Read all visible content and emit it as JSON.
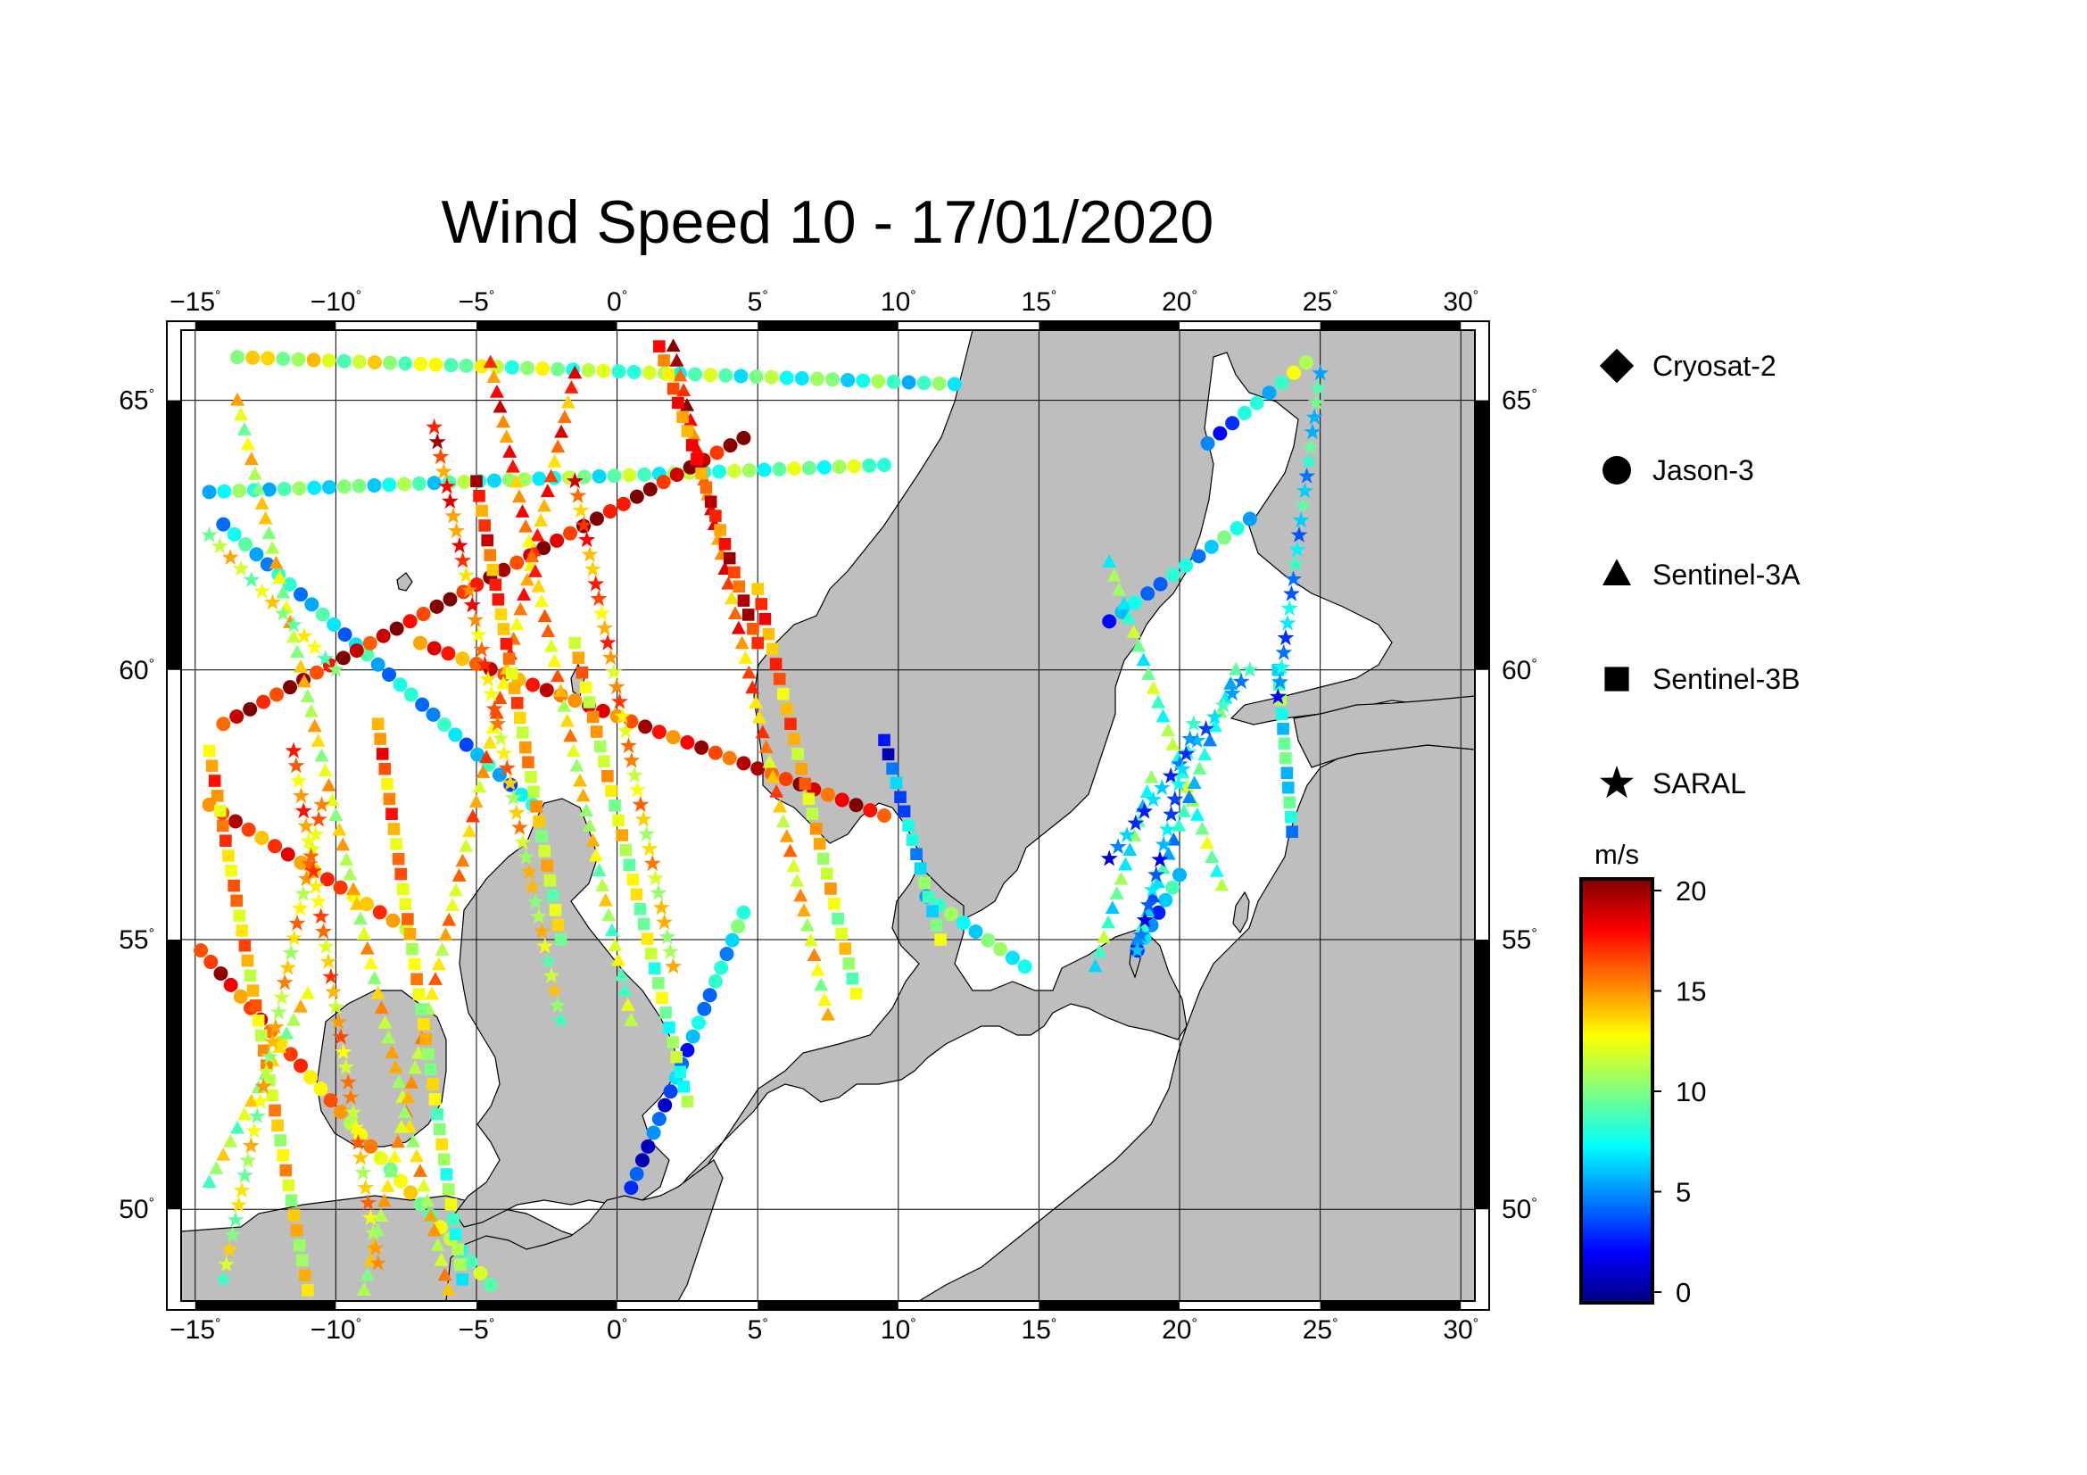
{
  "title": "Wind Speed 10 - 17/01/2020",
  "map": {
    "lon_range": [
      -15.5,
      30.5
    ],
    "lat_range": [
      48.3,
      66.3
    ],
    "lon_ticks": [
      "-15",
      "-10",
      "-5",
      "0",
      "5",
      "10",
      "15",
      "20",
      "25",
      "30"
    ],
    "lat_ticks": [
      "50",
      "55",
      "60",
      "65"
    ],
    "land_color": "#bebebe",
    "sea_color": "#ffffff"
  },
  "legend": {
    "items": [
      {
        "label": "Cryosat-2",
        "symbol": "diamond"
      },
      {
        "label": "Jason-3",
        "symbol": "circle"
      },
      {
        "label": "Sentinel-3A",
        "symbol": "triangle"
      },
      {
        "label": "Sentinel-3B",
        "symbol": "square"
      },
      {
        "label": "SARAL",
        "symbol": "star"
      }
    ]
  },
  "colorbar": {
    "unit": "m/s",
    "ticks": [
      "0",
      "5",
      "10",
      "15",
      "20"
    ],
    "range": [
      0,
      20
    ]
  },
  "chart_data": {
    "type": "scatter",
    "title": "Wind Speed 10 - 17/01/2020",
    "series": [
      {
        "name": "Jason-3",
        "symbol": "circle",
        "tracks": [
          {
            "from": [
              -14.5,
              63.3
            ],
            "to": [
              9.5,
              63.8
            ],
            "v0": 8,
            "v1": 10
          },
          {
            "from": [
              -14.0,
              62.7
            ],
            "to": [
              -3.0,
              57.5
            ],
            "v0": 7,
            "v1": 6
          },
          {
            "from": [
              -7.0,
              60.5
            ],
            "to": [
              9.5,
              57.3
            ],
            "v0": 16,
            "v1": 18
          },
          {
            "from": [
              -14.0,
              59.0
            ],
            "to": [
              4.5,
              64.3
            ],
            "v0": 18,
            "v1": 19
          },
          {
            "from": [
              -14.8,
              54.8
            ],
            "to": [
              -4.5,
              48.6
            ],
            "v0": 18,
            "v1": 9
          },
          {
            "from": [
              -14.5,
              57.5
            ],
            "to": [
              -7.5,
              55.2
            ],
            "v0": 17,
            "v1": 14
          },
          {
            "from": [
              0.5,
              50.4
            ],
            "to": [
              4.5,
              55.5
            ],
            "v0": 2,
            "v1": 8
          },
          {
            "from": [
              -13.5,
              65.8
            ],
            "to": [
              12.0,
              65.3
            ],
            "v0": 12,
            "v1": 8
          },
          {
            "from": [
              17.5,
              60.9
            ],
            "to": [
              22.5,
              62.8
            ],
            "v0": 5,
            "v1": 8
          },
          {
            "from": [
              21.0,
              64.2
            ],
            "to": [
              24.5,
              65.7
            ],
            "v0": 3,
            "v1": 11
          },
          {
            "from": [
              11.0,
              55.8
            ],
            "to": [
              14.5,
              54.5
            ],
            "v0": 8,
            "v1": 9
          },
          {
            "from": [
              18.5,
              54.8
            ],
            "to": [
              20.0,
              56.2
            ],
            "v0": 4,
            "v1": 7
          }
        ]
      },
      {
        "name": "Sentinel-3A",
        "symbol": "triangle",
        "tracks": [
          {
            "from": [
              -6.0,
              48.5
            ],
            "to": [
              -13.5,
              65.0
            ],
            "v0": 13,
            "v1": 12
          },
          {
            "from": [
              -9.0,
              48.5
            ],
            "to": [
              -1.5,
              65.5
            ],
            "v0": 12,
            "v1": 16
          },
          {
            "from": [
              0.5,
              53.5
            ],
            "to": [
              -4.5,
              65.7
            ],
            "v0": 10,
            "v1": 17
          },
          {
            "from": [
              7.5,
              53.6
            ],
            "to": [
              2.0,
              66.0
            ],
            "v0": 12,
            "v1": 18
          },
          {
            "from": [
              21.5,
              56.0
            ],
            "to": [
              17.5,
              62.0
            ],
            "v0": 10,
            "v1": 9
          },
          {
            "from": [
              18.5,
              55.0
            ],
            "to": [
              22.0,
              60.0
            ],
            "v0": 6,
            "v1": 8
          },
          {
            "from": [
              -14.5,
              50.5
            ],
            "to": [
              -11.0,
              54.0
            ],
            "v0": 11,
            "v1": 12
          },
          {
            "from": [
              17.0,
              54.5
            ],
            "to": [
              19.0,
              58.0
            ],
            "v0": 9,
            "v1": 8
          }
        ]
      },
      {
        "name": "Sentinel-3B",
        "symbol": "square",
        "tracks": [
          {
            "from": [
              -14.5,
              58.5
            ],
            "to": [
              -11.0,
              48.5
            ],
            "v0": 15,
            "v1": 12
          },
          {
            "from": [
              -8.5,
              59.0
            ],
            "to": [
              -5.5,
              48.7
            ],
            "v0": 16,
            "v1": 9
          },
          {
            "from": [
              -1.5,
              60.5
            ],
            "to": [
              2.5,
              52.0
            ],
            "v0": 14,
            "v1": 9
          },
          {
            "from": [
              5.0,
              61.5
            ],
            "to": [
              8.5,
              54.0
            ],
            "v0": 16,
            "v1": 11
          },
          {
            "from": [
              -5.0,
              63.5
            ],
            "to": [
              -2.0,
              55.0
            ],
            "v0": 17,
            "v1": 11
          },
          {
            "from": [
              9.5,
              58.7
            ],
            "to": [
              11.5,
              55.0
            ],
            "v0": 3,
            "v1": 10
          },
          {
            "from": [
              23.5,
              60.0
            ],
            "to": [
              24.0,
              57.0
            ],
            "v0": 9,
            "v1": 7
          },
          {
            "from": [
              1.5,
              66.0
            ],
            "to": [
              5.0,
              60.5
            ],
            "v0": 15,
            "v1": 18
          }
        ]
      },
      {
        "name": "SARAL",
        "symbol": "star",
        "tracks": [
          {
            "from": [
              -14.0,
              48.7
            ],
            "to": [
              -10.5,
              57.5
            ],
            "v0": 11,
            "v1": 14
          },
          {
            "from": [
              -11.5,
              58.5
            ],
            "to": [
              -8.5,
              49.0
            ],
            "v0": 15,
            "v1": 13
          },
          {
            "from": [
              -2.0,
              53.5
            ],
            "to": [
              -6.5,
              64.5
            ],
            "v0": 11,
            "v1": 17
          },
          {
            "from": [
              2.0,
              54.5
            ],
            "to": [
              -1.5,
              63.5
            ],
            "v0": 12,
            "v1": 16
          },
          {
            "from": [
              17.5,
              56.5
            ],
            "to": [
              22.5,
              60.0
            ],
            "v0": 4,
            "v1": 7
          },
          {
            "from": [
              -14.5,
              62.5
            ],
            "to": [
              -10.0,
              60.0
            ],
            "v0": 12,
            "v1": 11
          },
          {
            "from": [
              23.5,
              59.5
            ],
            "to": [
              25.0,
              65.5
            ],
            "v0": 5,
            "v1": 8
          },
          {
            "from": [
              20.5,
              59.0
            ],
            "to": [
              18.5,
              54.8
            ],
            "v0": 6,
            "v1": 4
          }
        ]
      },
      {
        "name": "Cryosat-2",
        "symbol": "diamond",
        "tracks": []
      }
    ],
    "color_scale": {
      "min": 0,
      "max": 20,
      "unit": "m/s"
    }
  }
}
